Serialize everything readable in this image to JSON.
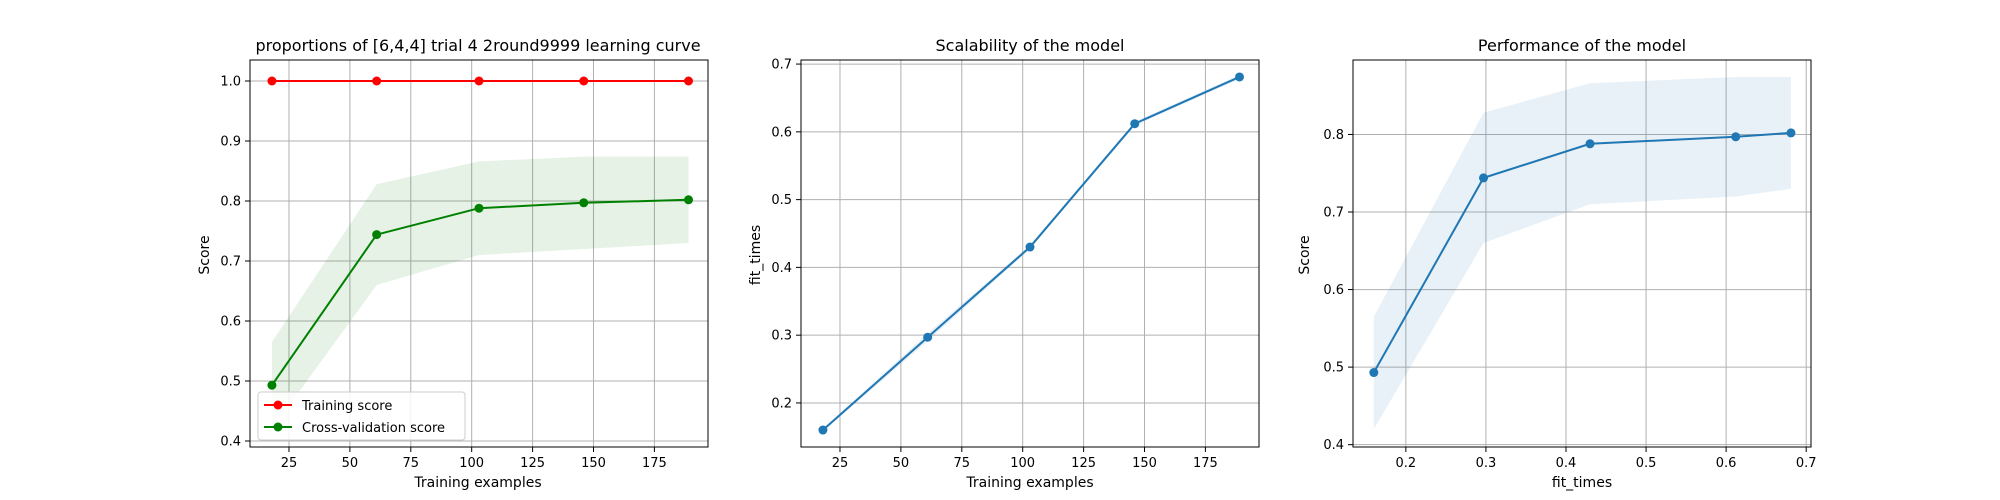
{
  "colors": {
    "training": "#ff0000",
    "cv": "#008000",
    "cv_band": "#008000",
    "blue": "#1f77b4",
    "grid": "#b0b0b0"
  },
  "chart_data": [
    {
      "type": "line",
      "title": "proportions of [6,4,4] trial 4 2round9999 learning curve",
      "xlabel": "Training examples",
      "ylabel": "Score",
      "xlim": [
        9,
        197
      ],
      "ylim": [
        0.39,
        1.035
      ],
      "xticks": [
        25,
        50,
        75,
        100,
        125,
        150,
        175
      ],
      "yticks": [
        0.4,
        0.5,
        0.6,
        0.7,
        0.8,
        0.9,
        1.0
      ],
      "grid": true,
      "legend": {
        "position": "lower-left",
        "entries": [
          "Training score",
          "Cross-validation score"
        ]
      },
      "x": [
        18,
        61,
        103,
        146,
        189
      ],
      "series": [
        {
          "name": "Training score",
          "color": "#ff0000",
          "values": [
            1.0,
            1.0,
            1.0,
            1.0,
            1.0
          ],
          "band_lower": [
            1.0,
            1.0,
            1.0,
            1.0,
            1.0
          ],
          "band_upper": [
            1.0,
            1.0,
            1.0,
            1.0,
            1.0
          ]
        },
        {
          "name": "Cross-validation score",
          "color": "#008000",
          "values": [
            0.493,
            0.744,
            0.788,
            0.797,
            0.802
          ],
          "band_lower": [
            0.42,
            0.66,
            0.71,
            0.72,
            0.73
          ],
          "band_upper": [
            0.565,
            0.828,
            0.866,
            0.874,
            0.874
          ]
        }
      ]
    },
    {
      "type": "line",
      "title": "Scalability of the model",
      "xlabel": "Training examples",
      "ylabel": "fit_times",
      "xlim": [
        9,
        197
      ],
      "ylim": [
        0.135,
        0.706
      ],
      "xticks": [
        25,
        50,
        75,
        100,
        125,
        150,
        175
      ],
      "yticks": [
        0.2,
        0.3,
        0.4,
        0.5,
        0.6,
        0.7
      ],
      "grid": true,
      "x": [
        18,
        61,
        103,
        146,
        189
      ],
      "series": [
        {
          "color": "#1f77b4",
          "values": [
            0.16,
            0.297,
            0.43,
            0.612,
            0.681
          ],
          "band_lower": [
            0.158,
            0.291,
            0.427,
            0.609,
            0.678
          ],
          "band_upper": [
            0.162,
            0.303,
            0.433,
            0.615,
            0.684
          ]
        }
      ]
    },
    {
      "type": "line",
      "title": "Performance of the model",
      "xlabel": "fit_times",
      "ylabel": "Score",
      "xlim": [
        0.134,
        0.706
      ],
      "ylim": [
        0.397,
        0.896
      ],
      "xticks": [
        0.2,
        0.3,
        0.4,
        0.5,
        0.6,
        0.7
      ],
      "yticks": [
        0.4,
        0.5,
        0.6,
        0.7,
        0.8
      ],
      "grid": true,
      "x": [
        0.16,
        0.297,
        0.43,
        0.612,
        0.681
      ],
      "series": [
        {
          "color": "#1f77b4",
          "values": [
            0.493,
            0.744,
            0.788,
            0.797,
            0.802
          ],
          "band_lower": [
            0.42,
            0.66,
            0.71,
            0.72,
            0.73
          ],
          "band_upper": [
            0.565,
            0.828,
            0.866,
            0.874,
            0.874
          ]
        }
      ]
    }
  ]
}
